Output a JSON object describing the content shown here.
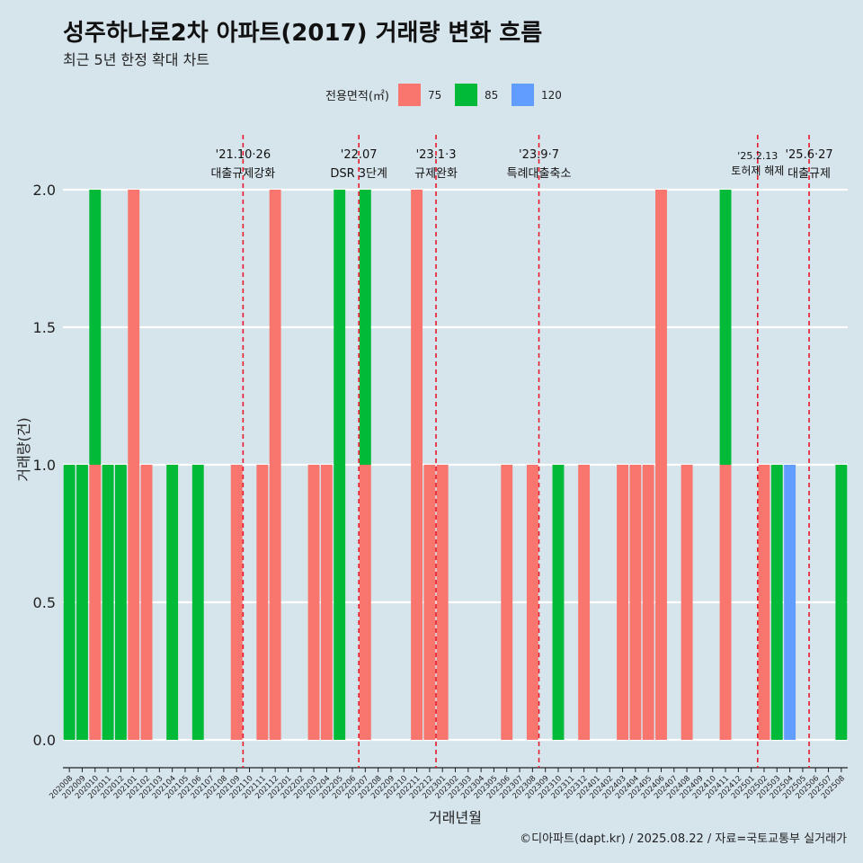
{
  "title": "성주하나로2차 아파트(2017) 거래량 변화 흐름",
  "subtitle": "최근 5년 한정 확대 차트",
  "caption": "©디아파트(dapt.kr) / 2025.08.22 / 자료=국토교통부 실거래가",
  "legend": {
    "title": "전용면적(㎡)",
    "items": [
      {
        "label": "75",
        "color": "#f8766d"
      },
      {
        "label": "85",
        "color": "#00ba38"
      },
      {
        "label": "120",
        "color": "#619cff"
      }
    ]
  },
  "chart_data": {
    "type": "bar",
    "title": "성주하나로2차 아파트(2017) 거래량 변화 흐름",
    "xlabel": "거래년월",
    "ylabel": "거래량(건)",
    "ylim": [
      0,
      2.2
    ],
    "yticks": [
      "0.0",
      "0.5",
      "1.0",
      "1.5",
      "2.0"
    ],
    "grid": true,
    "legend_position": "top",
    "categories": [
      "202008",
      "202009",
      "202010",
      "202011",
      "202012",
      "202101",
      "202102",
      "202103",
      "202104",
      "202105",
      "202106",
      "202107",
      "202108",
      "202109",
      "202110",
      "202111",
      "202112",
      "202201",
      "202202",
      "202203",
      "202204",
      "202205",
      "202206",
      "202207",
      "202208",
      "202209",
      "202210",
      "202211",
      "202212",
      "202301",
      "202302",
      "202303",
      "202304",
      "202305",
      "202306",
      "202307",
      "202308",
      "202309",
      "202310",
      "202311",
      "202312",
      "202401",
      "202402",
      "202403",
      "202404",
      "202405",
      "202406",
      "202407",
      "202408",
      "202409",
      "202410",
      "202411",
      "202412",
      "202501",
      "202502",
      "202503",
      "202504",
      "202505",
      "202506",
      "202507",
      "202508"
    ],
    "series": [
      {
        "name": "75",
        "color": "#f8766d",
        "values": [
          0,
          0,
          1,
          0,
          0,
          2,
          1,
          0,
          0,
          0,
          0,
          0,
          0,
          1,
          0,
          1,
          2,
          0,
          0,
          1,
          1,
          0,
          0,
          1,
          0,
          0,
          0,
          2,
          1,
          1,
          0,
          0,
          0,
          0,
          1,
          0,
          1,
          0,
          0,
          0,
          1,
          0,
          0,
          1,
          1,
          1,
          2,
          0,
          1,
          0,
          0,
          1,
          0,
          0,
          1,
          0,
          0,
          0,
          0,
          0,
          0
        ]
      },
      {
        "name": "85",
        "color": "#00ba38",
        "values": [
          1,
          1,
          1,
          1,
          1,
          0,
          0,
          0,
          1,
          0,
          1,
          0,
          0,
          0,
          0,
          0,
          0,
          0,
          0,
          0,
          0,
          2,
          0,
          1,
          0,
          0,
          0,
          0,
          0,
          0,
          0,
          0,
          0,
          0,
          0,
          0,
          0,
          0,
          1,
          0,
          0,
          0,
          0,
          0,
          0,
          0,
          0,
          0,
          0,
          0,
          0,
          1,
          0,
          0,
          0,
          1,
          0,
          0,
          0,
          0,
          1
        ]
      },
      {
        "name": "120",
        "color": "#619cff",
        "values": [
          0,
          0,
          0,
          0,
          0,
          0,
          0,
          0,
          0,
          0,
          0,
          0,
          0,
          0,
          0,
          0,
          0,
          0,
          0,
          0,
          0,
          0,
          0,
          0,
          0,
          0,
          0,
          0,
          0,
          0,
          0,
          0,
          0,
          0,
          0,
          0,
          0,
          0,
          0,
          0,
          0,
          0,
          0,
          0,
          0,
          0,
          0,
          0,
          0,
          0,
          0,
          0,
          0,
          0,
          0,
          0,
          1,
          0,
          0,
          0,
          0
        ]
      }
    ],
    "events": [
      {
        "category": "202110",
        "date": "'21.10·26",
        "label": "대출규제강화"
      },
      {
        "category": "202207",
        "date": "'22.07",
        "label": "DSR 3단계"
      },
      {
        "category": "202301",
        "date": "'23.1·3",
        "label": "규제완화"
      },
      {
        "category": "202309",
        "date": "'23.9·7",
        "label": "특례대출축소"
      },
      {
        "category": "202502",
        "date": "'25.2.13",
        "label": "토허제 해제"
      },
      {
        "category": "202506",
        "date": "'25.6·27",
        "label": "대출규제"
      }
    ]
  }
}
